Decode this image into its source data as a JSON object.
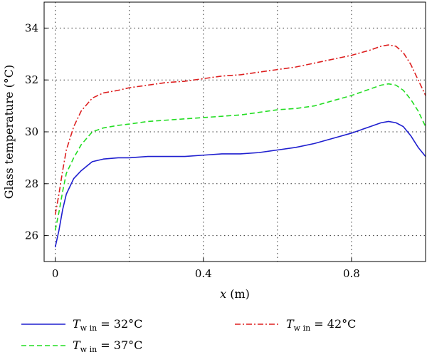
{
  "chart_data": {
    "type": "line",
    "xlabel_var": "x",
    "xlabel_unit": " (m)",
    "ylabel": "Glass temperature (°C)",
    "xlim": [
      -0.03,
      1.0
    ],
    "ylim": [
      25.0,
      35.0
    ],
    "xticks": [
      0,
      0.4,
      0.8
    ],
    "xtick_labels": [
      "0",
      "0.4",
      "0.8"
    ],
    "yticks": [
      26,
      28,
      30,
      32,
      34
    ],
    "ytick_labels": [
      "26",
      "28",
      "30",
      "32",
      "34"
    ],
    "extra_grid_x": [
      0.2,
      0.6,
      1.0
    ],
    "grid": true,
    "legend_position": "bottom",
    "series": [
      {
        "name_var": "T",
        "name_sub": "w in",
        "name_rest": " = 32°C",
        "color": "#1f1fcf",
        "dash": "solid",
        "x": [
          0,
          0.01,
          0.02,
          0.03,
          0.05,
          0.07,
          0.1,
          0.13,
          0.17,
          0.2,
          0.25,
          0.3,
          0.35,
          0.4,
          0.45,
          0.5,
          0.55,
          0.6,
          0.65,
          0.7,
          0.75,
          0.8,
          0.85,
          0.88,
          0.9,
          0.92,
          0.94,
          0.96,
          0.98,
          1.0
        ],
        "y": [
          25.55,
          26.2,
          27.0,
          27.6,
          28.2,
          28.5,
          28.85,
          28.95,
          29.0,
          29.0,
          29.05,
          29.05,
          29.05,
          29.1,
          29.15,
          29.15,
          29.2,
          29.3,
          29.4,
          29.55,
          29.75,
          29.95,
          30.2,
          30.35,
          30.4,
          30.35,
          30.2,
          29.85,
          29.4,
          29.05
        ]
      },
      {
        "name_var": "T",
        "name_sub": "w in",
        "name_rest": " = 37°C",
        "color": "#22dd22",
        "dash": "dashed",
        "x": [
          0,
          0.01,
          0.02,
          0.03,
          0.05,
          0.07,
          0.1,
          0.13,
          0.17,
          0.2,
          0.25,
          0.3,
          0.35,
          0.4,
          0.45,
          0.5,
          0.55,
          0.6,
          0.65,
          0.7,
          0.75,
          0.8,
          0.85,
          0.88,
          0.9,
          0.92,
          0.94,
          0.96,
          0.98,
          1.0
        ],
        "y": [
          26.2,
          26.9,
          27.7,
          28.4,
          29.0,
          29.5,
          30.0,
          30.15,
          30.25,
          30.3,
          30.4,
          30.45,
          30.5,
          30.55,
          30.6,
          30.65,
          30.75,
          30.85,
          30.9,
          31.0,
          31.2,
          31.4,
          31.65,
          31.8,
          31.85,
          31.8,
          31.6,
          31.25,
          30.8,
          30.2
        ]
      },
      {
        "name_var": "T",
        "name_sub": "w in",
        "name_rest": " = 42°C",
        "color": "#dd1f1f",
        "dash": "dashdot",
        "x": [
          0,
          0.01,
          0.02,
          0.03,
          0.05,
          0.07,
          0.1,
          0.13,
          0.17,
          0.2,
          0.25,
          0.3,
          0.35,
          0.4,
          0.45,
          0.5,
          0.55,
          0.6,
          0.65,
          0.7,
          0.75,
          0.8,
          0.85,
          0.88,
          0.9,
          0.92,
          0.94,
          0.96,
          0.98,
          1.0
        ],
        "y": [
          26.8,
          27.6,
          28.5,
          29.3,
          30.2,
          30.8,
          31.3,
          31.5,
          31.6,
          31.7,
          31.8,
          31.9,
          31.95,
          32.05,
          32.15,
          32.2,
          32.3,
          32.4,
          32.5,
          32.65,
          32.8,
          32.95,
          33.15,
          33.3,
          33.35,
          33.3,
          33.05,
          32.6,
          32.0,
          31.4
        ]
      }
    ]
  }
}
